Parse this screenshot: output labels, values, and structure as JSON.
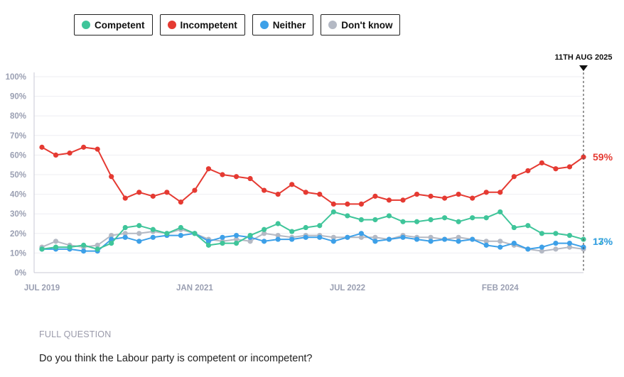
{
  "legend": [
    {
      "label": "Competent",
      "color": "#3fc59a"
    },
    {
      "label": "Incompetent",
      "color": "#e53a32"
    },
    {
      "label": "Neither",
      "color": "#3da0e8"
    },
    {
      "label": "Don't know",
      "color": "#b4b9c4"
    }
  ],
  "marker_label": "11TH AUG 2025",
  "footer": {
    "label": "FULL QUESTION",
    "question": "Do you think the Labour party is competent or incompetent?"
  },
  "chart_data": {
    "type": "line",
    "ylim": [
      0,
      100
    ],
    "y_ticks": [
      "0%",
      "10%",
      "20%",
      "30%",
      "40%",
      "50%",
      "60%",
      "70%",
      "80%",
      "90%",
      "100%"
    ],
    "x_tick_labels": [
      {
        "label": "JUL 2019",
        "index": 0
      },
      {
        "label": "JAN 2021",
        "index": 11
      },
      {
        "label": "JUL 2022",
        "index": 22
      },
      {
        "label": "FEB 2024",
        "index": 33
      }
    ],
    "end_labels": [
      {
        "series": "Incompetent",
        "text": "59%",
        "color": "#e53a32"
      },
      {
        "series": "Competent",
        "text": "17%",
        "color": "#3fc59a"
      },
      {
        "series": "Neither",
        "text": "13%",
        "color": "#3da0e8"
      }
    ],
    "series": [
      {
        "name": "Incompetent",
        "color": "#e53a32",
        "values": [
          64,
          60,
          61,
          64,
          63,
          49,
          38,
          41,
          39,
          41,
          36,
          42,
          53,
          50,
          49,
          48,
          42,
          40,
          45,
          41,
          40,
          35,
          35,
          35,
          39,
          37,
          37,
          40,
          39,
          38,
          40,
          38,
          41,
          41,
          49,
          52,
          56,
          53,
          54,
          59
        ]
      },
      {
        "name": "Competent",
        "color": "#3fc59a",
        "values": [
          12,
          13,
          13,
          14,
          12,
          15,
          23,
          24,
          22,
          20,
          23,
          20,
          14,
          15,
          15,
          19,
          22,
          25,
          21,
          23,
          24,
          31,
          29,
          27,
          27,
          29,
          26,
          26,
          27,
          28,
          26,
          28,
          28,
          31,
          23,
          24,
          20,
          20,
          19,
          17
        ]
      },
      {
        "name": "Neither",
        "color": "#3da0e8",
        "values": [
          12,
          12,
          12,
          11,
          11,
          17,
          18,
          16,
          18,
          19,
          19,
          20,
          16,
          18,
          19,
          18,
          16,
          17,
          17,
          18,
          18,
          16,
          18,
          20,
          16,
          17,
          18,
          17,
          16,
          17,
          16,
          17,
          14,
          13,
          15,
          12,
          13,
          15,
          15,
          13
        ]
      },
      {
        "name": "Don't know",
        "color": "#b4b9c4",
        "values": [
          13,
          16,
          14,
          13,
          14,
          19,
          20,
          20,
          21,
          20,
          22,
          20,
          17,
          16,
          17,
          16,
          20,
          19,
          18,
          19,
          19,
          18,
          18,
          18,
          18,
          17,
          19,
          18,
          18,
          17,
          18,
          17,
          16,
          16,
          14,
          12,
          11,
          12,
          13,
          12
        ]
      }
    ]
  }
}
